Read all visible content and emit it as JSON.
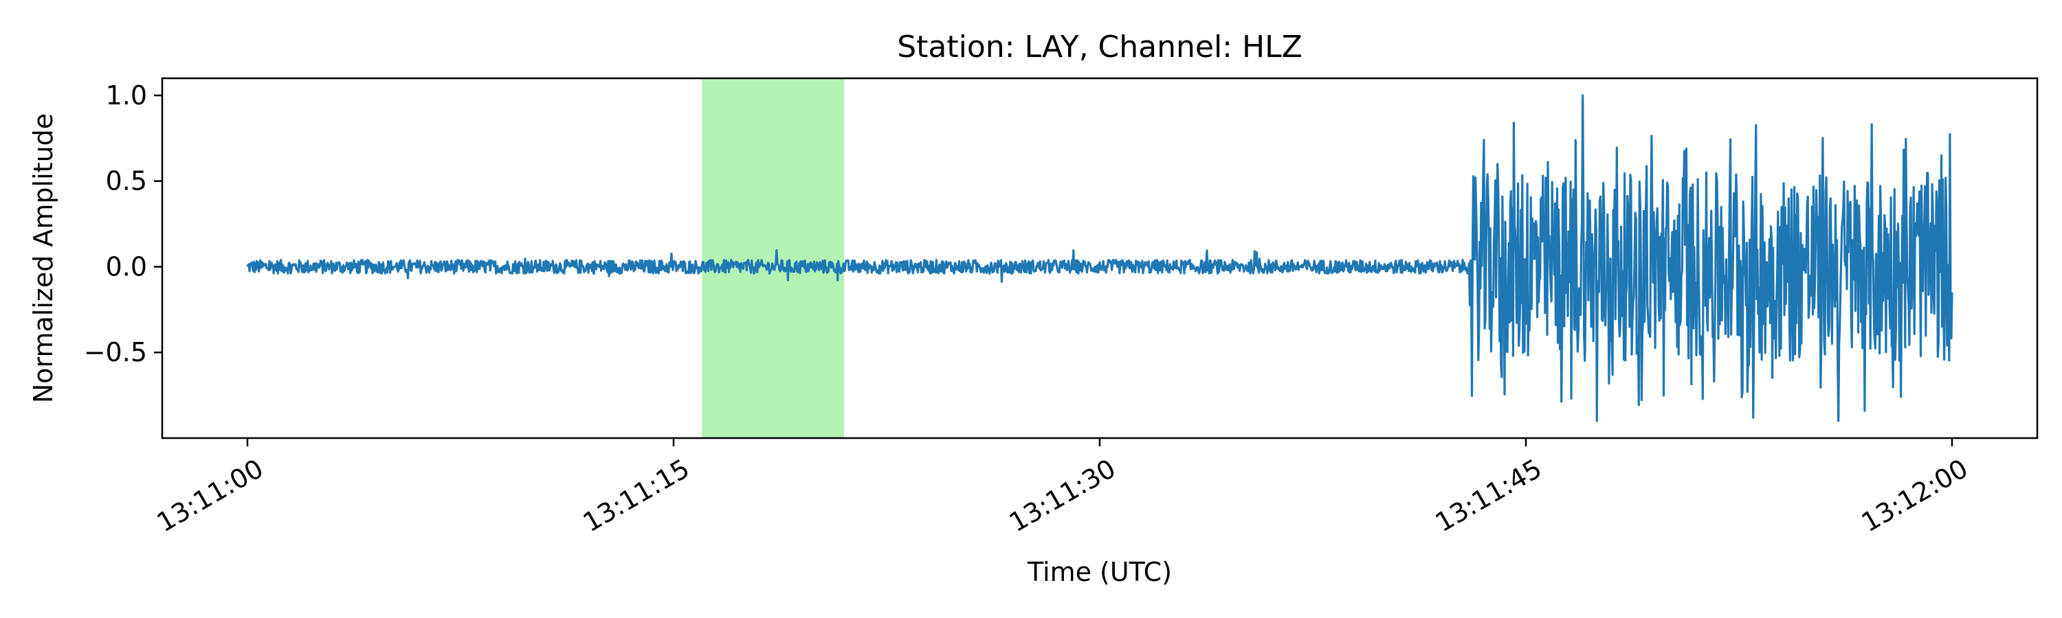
{
  "chart_data": {
    "type": "line",
    "title": "Station: LAY, Channel: HLZ",
    "xlabel": "Time (UTC)",
    "ylabel": "Normalized Amplitude",
    "x_start": "13:11:00",
    "x_end": "13:12:00",
    "xlim": [
      "13:10:57",
      "13:12:03"
    ],
    "ylim": [
      -1.0,
      1.1
    ],
    "x_ticks": [
      "13:11:00",
      "13:11:15",
      "13:11:30",
      "13:11:45",
      "13:12:00"
    ],
    "y_ticks": [
      "1.0",
      "0.5",
      "0.0",
      "−0.5"
    ],
    "y_tick_values": [
      1.0,
      0.5,
      0.0,
      -0.5
    ],
    "grid": false,
    "highlight_window": {
      "start": "13:11:16",
      "end": "13:11:21",
      "color": "#b3f2b3"
    },
    "series": [
      {
        "color": "#1f77b4",
        "noise_amplitude_pre_event": 0.04,
        "event_onset": "13:11:43",
        "event_peak_amplitude": 1.0,
        "event_min_amplitude": -0.9,
        "samples": [
          {
            "t": "13:11:00",
            "y": 0.0
          },
          {
            "t": "13:11:43",
            "y": 0.02
          },
          {
            "t": "13:11:44",
            "y": 0.6
          },
          {
            "t": "13:11:47",
            "y": 1.0
          },
          {
            "t": "13:11:47.5",
            "y": -0.9
          },
          {
            "t": "13:11:53",
            "y": -0.88
          },
          {
            "t": "13:11:56",
            "y": -0.9
          },
          {
            "t": "13:12:00",
            "y": -0.15
          }
        ]
      }
    ]
  }
}
